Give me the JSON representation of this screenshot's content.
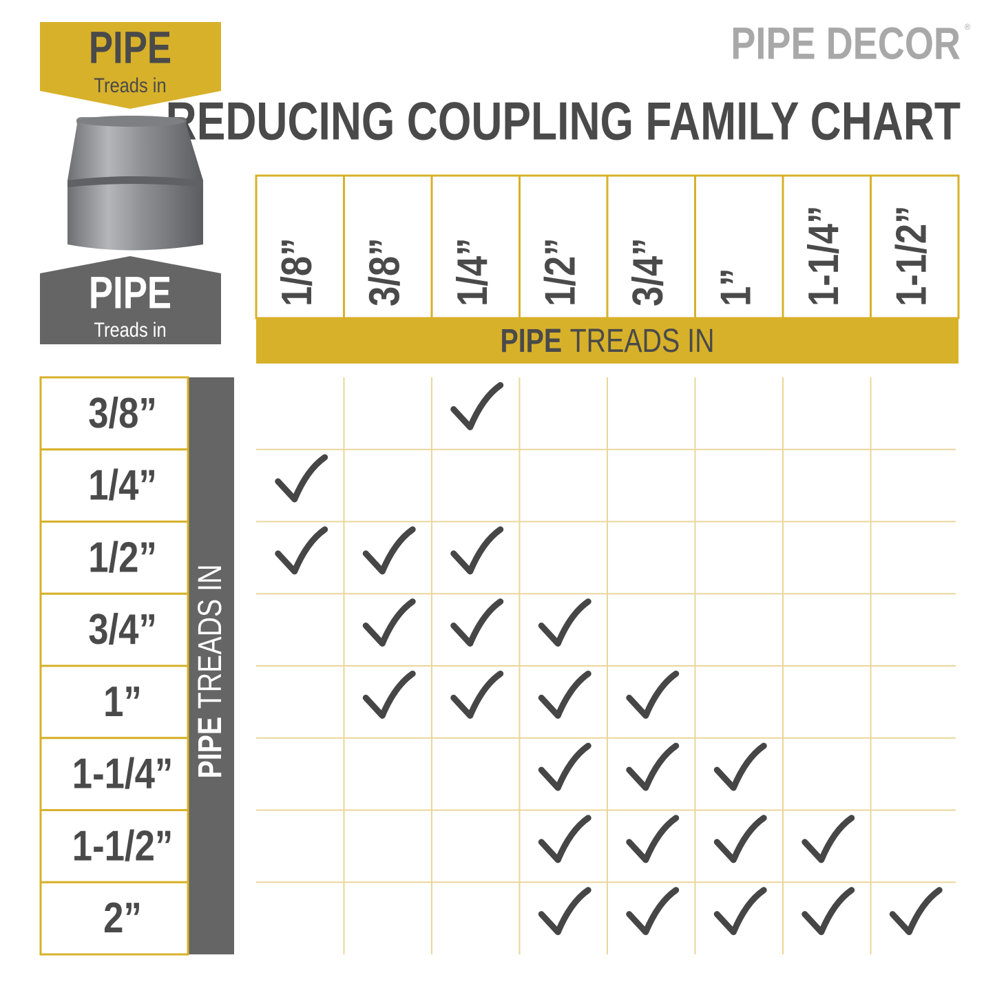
{
  "brand": {
    "name": "PIPE DECOR",
    "mark": "®"
  },
  "title": "REDUCING COUPLING FAMILY CHART",
  "top_badge": {
    "bold": "PIPE",
    "sub": "Treads in"
  },
  "bottom_badge": {
    "bold": "PIPE",
    "sub": "Treads in"
  },
  "columns": [
    "1/8”",
    "3/8”",
    "1/4”",
    "1/2”",
    "3/4”",
    "1”",
    "1-1/4”",
    "1-1/2”"
  ],
  "column_caption": {
    "bold": "PIPE",
    "rest": "TREADS IN"
  },
  "rows": [
    "3/8”",
    "1/4”",
    "1/2”",
    "3/4”",
    "1”",
    "1-1/4”",
    "1-1/2”",
    "2”"
  ],
  "row_caption": {
    "bold": "PIPE",
    "rest": "TREADS IN"
  },
  "matrix": [
    [
      false,
      false,
      true,
      false,
      false,
      false,
      false,
      false
    ],
    [
      true,
      false,
      false,
      false,
      false,
      false,
      false,
      false
    ],
    [
      true,
      true,
      true,
      false,
      false,
      false,
      false,
      false
    ],
    [
      false,
      true,
      true,
      true,
      false,
      false,
      false,
      false
    ],
    [
      false,
      true,
      true,
      true,
      true,
      false,
      false,
      false
    ],
    [
      false,
      false,
      false,
      true,
      true,
      true,
      false,
      false
    ],
    [
      false,
      false,
      false,
      true,
      true,
      true,
      true,
      false
    ],
    [
      false,
      false,
      false,
      true,
      true,
      true,
      true,
      true
    ]
  ]
}
